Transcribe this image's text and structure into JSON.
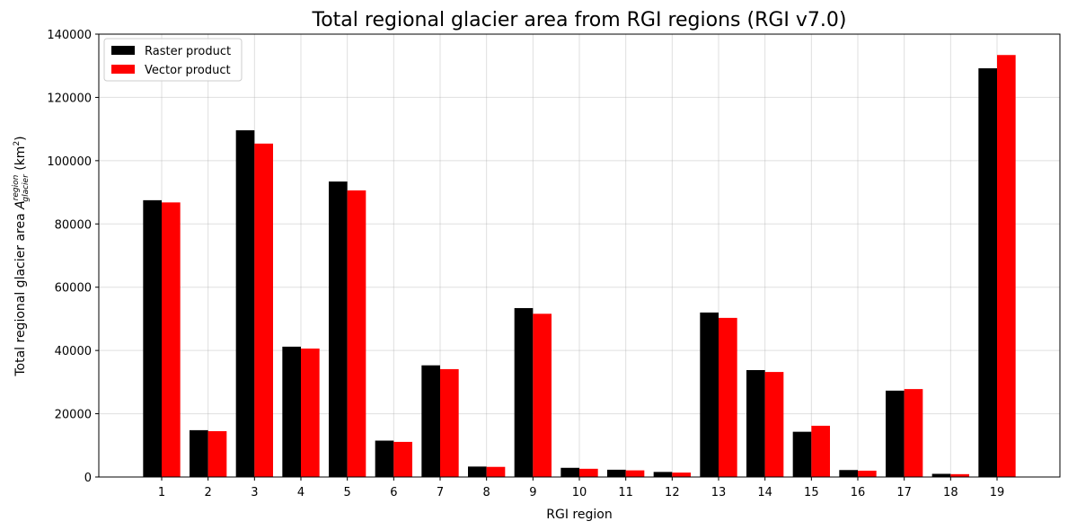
{
  "chart_data": {
    "type": "bar",
    "title": "Total regional glacier area from RGI regions (RGI v7.0)",
    "xlabel": "RGI region",
    "ylabel": {
      "prefix": "Total regional glacier area ",
      "symbol": "A",
      "superscript": "region",
      "subscript": "glacier",
      "units_open": " (km",
      "units_power": "2",
      "units_close": ")"
    },
    "categories": [
      "1",
      "2",
      "3",
      "4",
      "5",
      "6",
      "7",
      "8",
      "9",
      "10",
      "11",
      "12",
      "13",
      "14",
      "15",
      "16",
      "17",
      "18",
      "19"
    ],
    "series": [
      {
        "name": "Raster product",
        "color": "#000000",
        "values": [
          87500,
          14800,
          109600,
          41200,
          93400,
          11500,
          35300,
          3300,
          53400,
          2900,
          2300,
          1600,
          52000,
          33800,
          14300,
          2200,
          27300,
          1000,
          129200
        ]
      },
      {
        "name": "Vector product",
        "color": "#ff0000",
        "values": [
          86800,
          14500,
          105400,
          40600,
          90600,
          11100,
          34100,
          3200,
          51600,
          2600,
          2100,
          1400,
          50300,
          33200,
          16200,
          2000,
          27800,
          900,
          133400
        ]
      }
    ],
    "ylim": [
      0,
      140000
    ],
    "yticks": [
      "0",
      "20000",
      "40000",
      "60000",
      "80000",
      "100000",
      "120000",
      "140000"
    ],
    "grid": true,
    "legend_position": "top-left"
  }
}
